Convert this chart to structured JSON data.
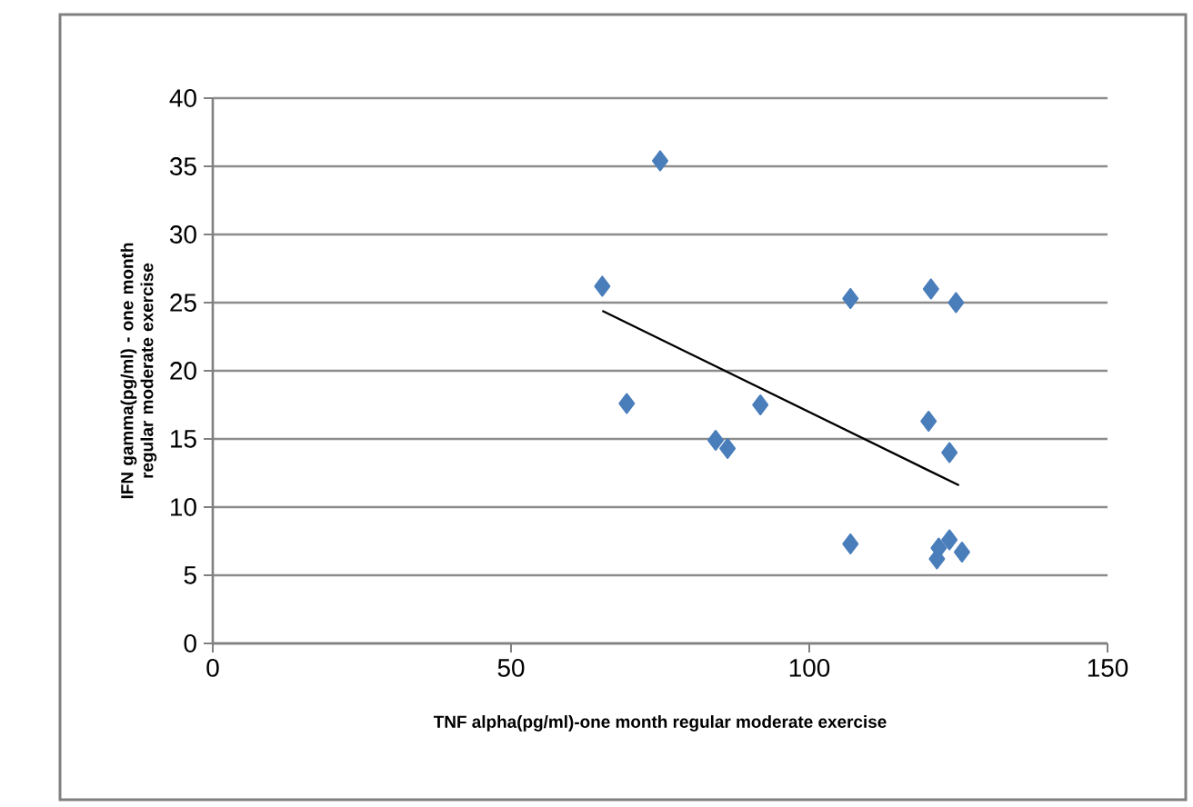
{
  "chart_data": {
    "type": "scatter",
    "xlabel": "TNF alpha(pg/ml)-one month regular moderate exercise",
    "ylabel": "IFN gamma(pg/ml) - one month regular moderate exercise",
    "xlim": [
      0,
      150
    ],
    "xticks": [
      0,
      50,
      100,
      150
    ],
    "ylim": [
      0,
      40
    ],
    "yticks": [
      0,
      5,
      10,
      15,
      20,
      25,
      30,
      35,
      40
    ],
    "grid": "y",
    "legend": false,
    "series": [
      {
        "color": "#4a7ebb",
        "marker": "diamond",
        "x": [
          75.0,
          65.3,
          69.4,
          84.3,
          86.3,
          91.8,
          106.9,
          106.9,
          120.4,
          124.6,
          120.0,
          123.5,
          123.5,
          121.7,
          121.4,
          125.6
        ],
        "values": [
          35.4,
          26.2,
          17.6,
          14.9,
          14.3,
          17.5,
          25.3,
          7.3,
          26.0,
          25.0,
          16.3,
          14.0,
          7.6,
          7.0,
          6.2,
          6.7
        ]
      },
      {
        "type": "line",
        "color": "#000000",
        "x": [
          65.3,
          125.1
        ],
        "values": [
          24.4,
          11.6
        ]
      }
    ]
  }
}
